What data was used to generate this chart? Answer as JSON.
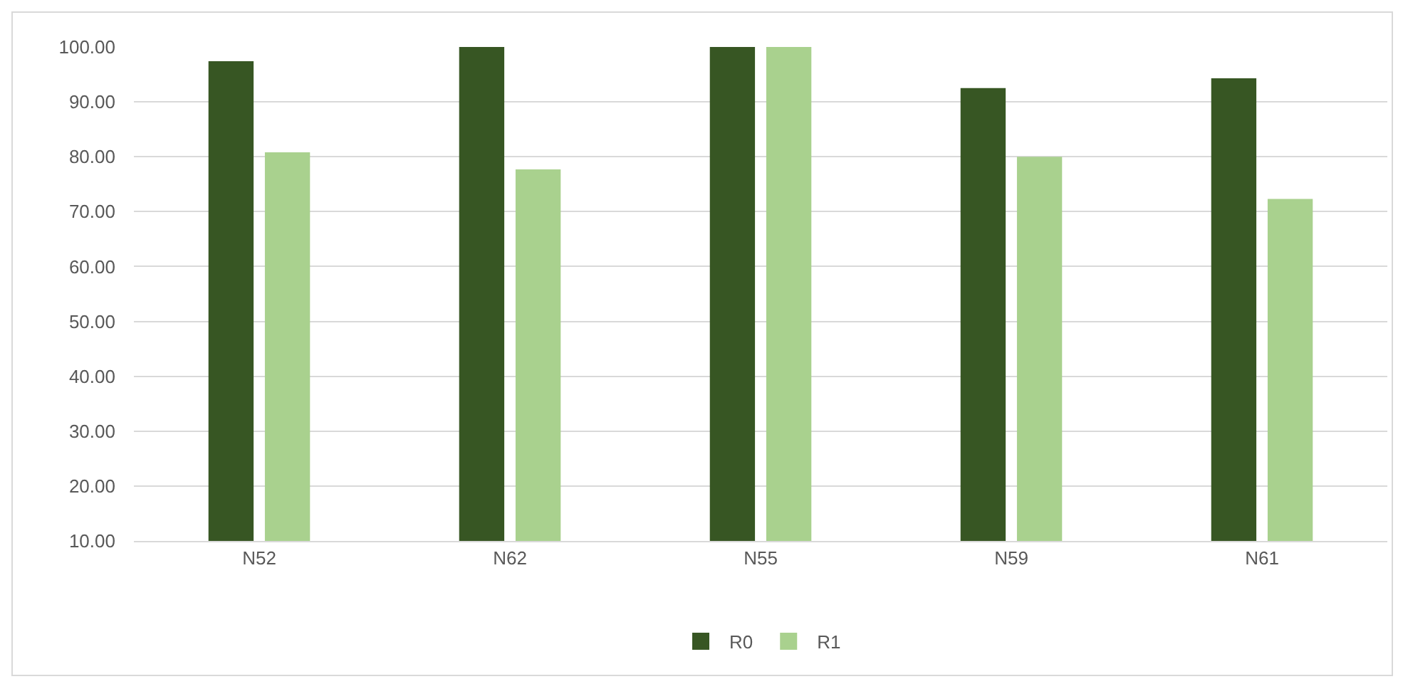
{
  "chart_data": {
    "type": "bar",
    "categories": [
      "N52",
      "N62",
      "N55",
      "N59",
      "N61"
    ],
    "series": [
      {
        "name": "R0",
        "color": "#375623",
        "values": [
          97.4,
          100,
          100,
          92.5,
          94.3
        ]
      },
      {
        "name": "R1",
        "color": "#a9d18e",
        "values": [
          80.8,
          77.7,
          100,
          80.0,
          72.3
        ]
      }
    ],
    "ylim": [
      10,
      100
    ],
    "yticks": [
      {
        "value": 10,
        "label": "10.00"
      },
      {
        "value": 20,
        "label": "20.00"
      },
      {
        "value": 30,
        "label": "30.00"
      },
      {
        "value": 40,
        "label": "40.00"
      },
      {
        "value": 50,
        "label": "50.00"
      },
      {
        "value": 60,
        "label": "60.00"
      },
      {
        "value": 70,
        "label": "70.00"
      },
      {
        "value": 80,
        "label": "80.00"
      },
      {
        "value": 90,
        "label": "90.00"
      },
      {
        "value": 100,
        "label": "100.00"
      }
    ],
    "grid": "y",
    "legend": "bottom"
  }
}
